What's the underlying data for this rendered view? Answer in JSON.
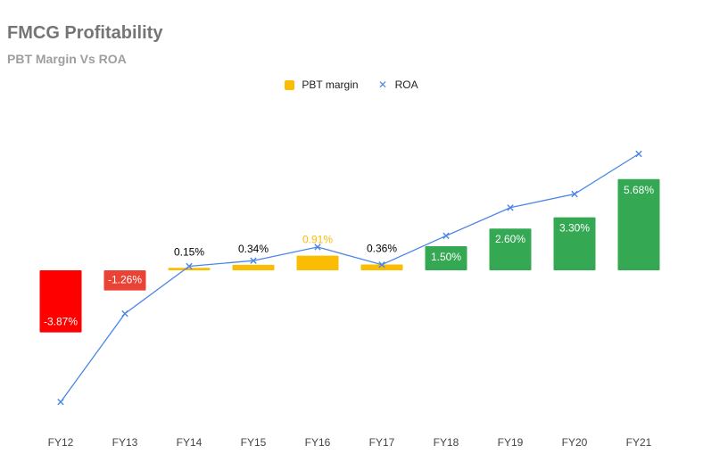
{
  "title": "FMCG Profitability",
  "subtitle": "PBT Margin Vs ROA",
  "legend": {
    "pbt_label": "PBT margin",
    "roa_label": "ROA"
  },
  "colors": {
    "negative_large": "#ff0000",
    "negative": "#ea4335",
    "low": "#fbbc04",
    "high": "#34a853",
    "roa_line": "#4a86e8"
  },
  "chart_data": {
    "type": "bar",
    "title": "FMCG Profitability",
    "subtitle": "PBT Margin Vs ROA",
    "categories": [
      "FY12",
      "FY13",
      "FY14",
      "FY15",
      "FY16",
      "FY17",
      "FY18",
      "FY19",
      "FY20",
      "FY21"
    ],
    "series": [
      {
        "name": "PBT margin",
        "type": "bar",
        "values": [
          -3.87,
          -1.26,
          0.15,
          0.34,
          0.91,
          0.36,
          1.5,
          2.6,
          3.3,
          5.68
        ],
        "labels": [
          "-3.87%",
          "-1.26%",
          "0.15%",
          "0.34%",
          "0.91%",
          "0.36%",
          "1.50%",
          "2.60%",
          "3.30%",
          "5.68%"
        ],
        "bar_colors": [
          "#ff0000",
          "#ea4335",
          "#fbbc04",
          "#fbbc04",
          "#fbbc04",
          "#fbbc04",
          "#34a853",
          "#34a853",
          "#34a853",
          "#34a853"
        ],
        "label_colors": [
          "#ffffff",
          "#ffffff",
          "#000000",
          "#000000",
          "#fbbc04",
          "#000000",
          "#ffffff",
          "#ffffff",
          "#ffffff",
          "#ffffff"
        ],
        "label_inside": [
          true,
          true,
          false,
          false,
          false,
          false,
          true,
          true,
          true,
          true
        ]
      },
      {
        "name": "ROA",
        "type": "line",
        "marker": "x",
        "values": [
          -8.2,
          -2.7,
          0.25,
          0.6,
          1.45,
          0.35,
          2.15,
          3.9,
          4.75,
          7.25
        ]
      }
    ],
    "ylim": [
      -10,
      10
    ],
    "grid": false,
    "legend_position": "top"
  }
}
